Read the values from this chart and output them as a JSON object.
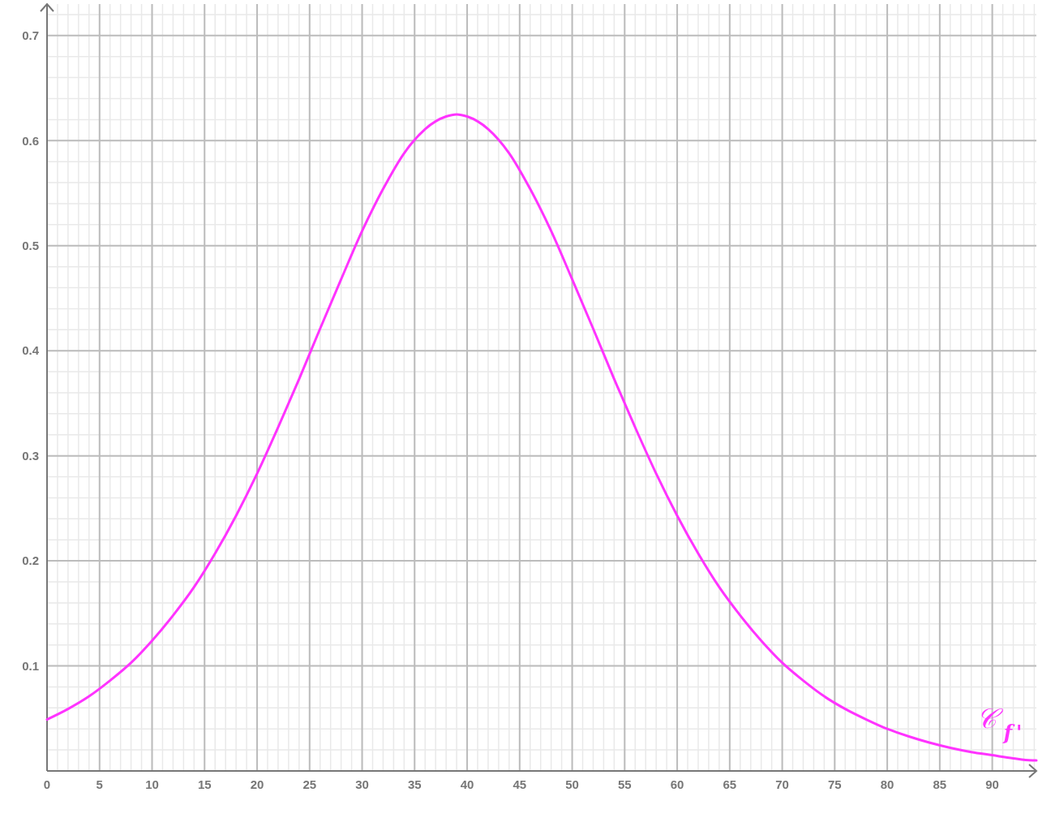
{
  "chart_data": {
    "type": "line",
    "x": [
      0,
      2,
      4,
      6,
      8,
      10,
      12,
      14,
      16,
      18,
      20,
      22,
      24,
      26,
      28,
      30,
      32,
      34,
      36,
      38,
      39,
      40,
      42,
      44,
      46,
      48,
      50,
      52,
      54,
      56,
      58,
      60,
      62,
      64,
      66,
      68,
      70,
      72,
      74,
      76,
      78,
      80,
      82,
      84,
      86,
      88,
      90,
      92,
      94,
      94.2
    ],
    "series": [
      {
        "name": "𝒞$_{f'}$",
        "color": "#ff33ff",
        "values": [
          0.049,
          0.059,
          0.071,
          0.086,
          0.103,
          0.124,
          0.148,
          0.175,
          0.207,
          0.243,
          0.283,
          0.327,
          0.373,
          0.421,
          0.468,
          0.514,
          0.554,
          0.588,
          0.611,
          0.623,
          0.625,
          0.623,
          0.611,
          0.588,
          0.554,
          0.514,
          0.468,
          0.421,
          0.373,
          0.327,
          0.283,
          0.243,
          0.207,
          0.175,
          0.148,
          0.124,
          0.103,
          0.086,
          0.071,
          0.059,
          0.049,
          0.04,
          0.033,
          0.027,
          0.022,
          0.018,
          0.015,
          0.012,
          0.01,
          0.01
        ]
      }
    ],
    "xlim": [
      0,
      94.2
    ],
    "ylim": [
      0,
      0.73
    ],
    "xticks": [
      0,
      5,
      10,
      15,
      20,
      25,
      30,
      35,
      40,
      45,
      50,
      55,
      60,
      65,
      70,
      75,
      80,
      85,
      90
    ],
    "yticks": [
      0.1,
      0.2,
      0.3,
      0.4,
      0.5,
      0.6,
      0.7
    ],
    "grid": true
  }
}
